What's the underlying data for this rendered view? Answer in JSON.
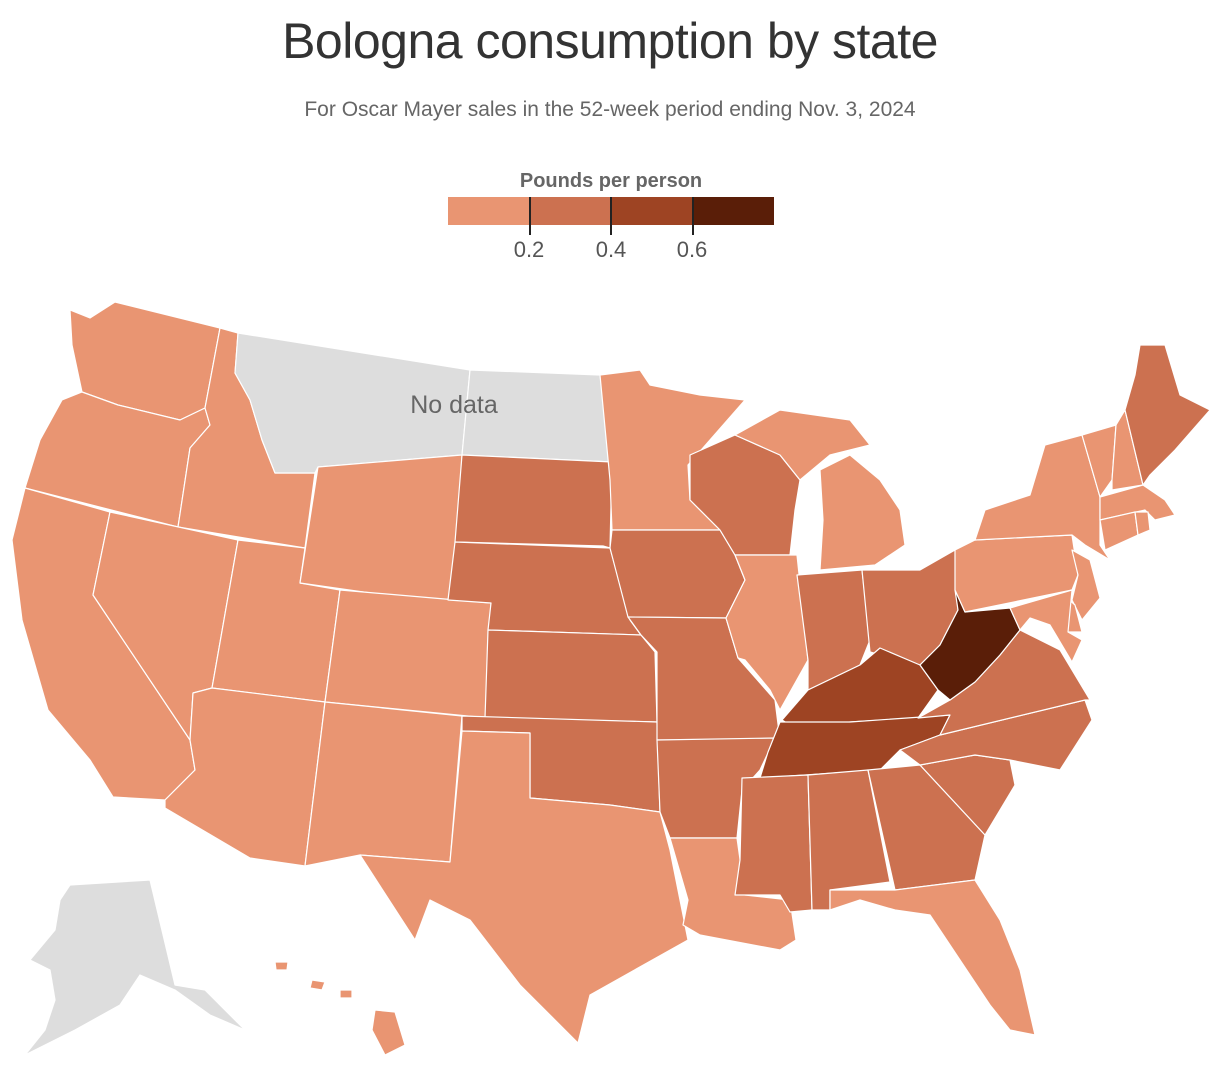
{
  "title": "Bologna consumption by state",
  "subtitle": "For Oscar Mayer sales in the 52-week period ending Nov. 3, 2024",
  "legend": {
    "title": "Pounds per person",
    "bins": [
      {
        "label": "0.2",
        "color": "#E99572"
      },
      {
        "label": "0.4",
        "color": "#CC7150"
      },
      {
        "label": "0.6",
        "color": "#9E4423"
      },
      {
        "label": "",
        "color": "#5A1E08"
      }
    ],
    "nodata_color": "#DDDDDD"
  },
  "map": {
    "nodata_label": "No data",
    "states": {
      "WA": 0,
      "OR": 0,
      "CA": 0,
      "ID": 0,
      "NV": 0,
      "UT": 0,
      "AZ": 0,
      "WY": 0,
      "CO": 0,
      "NM": 0,
      "TX": 0,
      "MN": 0,
      "IL": 0,
      "LA": 0,
      "MI": 0,
      "FL": 0,
      "PA": 0,
      "NY": 0,
      "VT": 0,
      "NH": 0,
      "MA": 0,
      "CT": 0,
      "RI": 0,
      "NJ": 0,
      "DE": 0,
      "MD": 0,
      "HI": 0,
      "SD": 1,
      "NE": 1,
      "KS": 1,
      "OK": 1,
      "IA": 1,
      "MO": 1,
      "AR": 1,
      "WI": 1,
      "IN": 1,
      "OH": 1,
      "MS": 1,
      "AL": 1,
      "GA": 1,
      "SC": 1,
      "NC": 1,
      "VA": 1,
      "ME": 1,
      "KY": 2,
      "TN": 2,
      "WV": 3,
      "MT": null,
      "ND": null,
      "AK": null
    }
  }
}
